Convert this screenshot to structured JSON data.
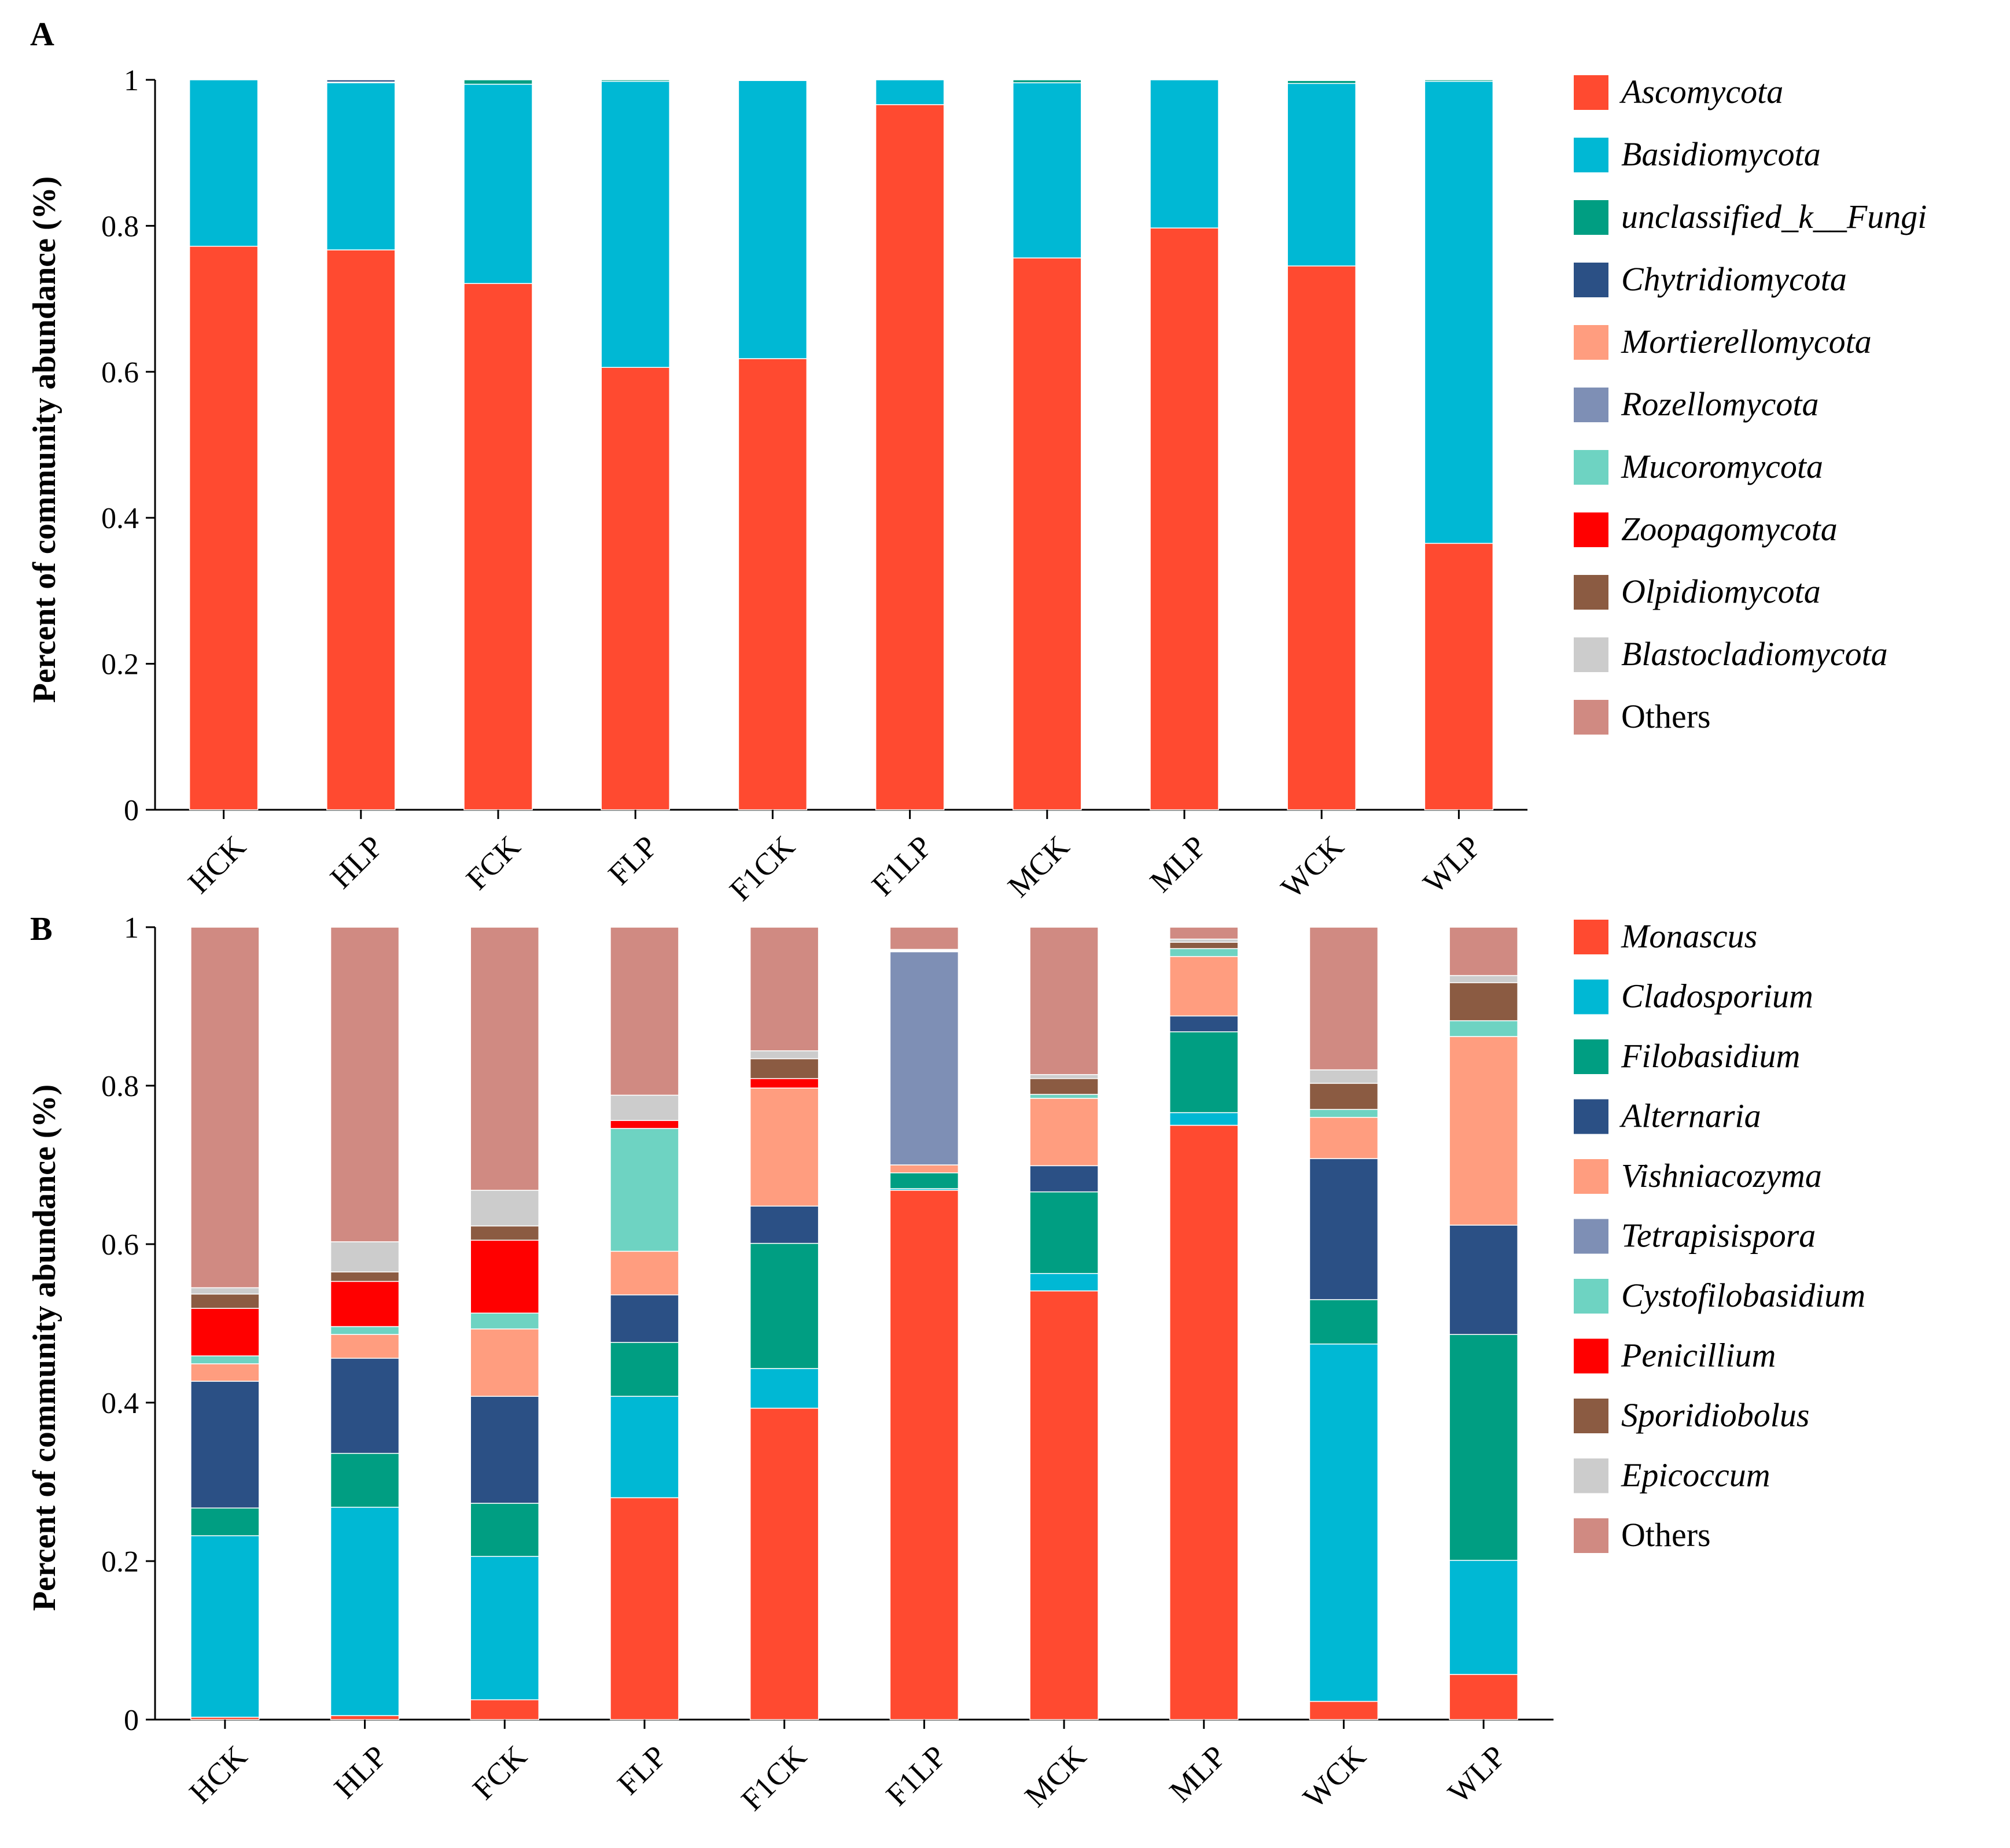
{
  "chart_data": [
    {
      "panel": "A",
      "type": "bar",
      "stacked": true,
      "ylabel": "Percent of community abundance (%)",
      "ylim": [
        0,
        1
      ],
      "yticks": [
        "0",
        "0.2",
        "0.4",
        "0.6",
        "0.8",
        "1"
      ],
      "categories": [
        "HCK",
        "HLP",
        "FCK",
        "FLP",
        "F1CK",
        "F1LP",
        "MCK",
        "MLP",
        "WCK",
        "WLP"
      ],
      "series": [
        {
          "name": "Ascomycota",
          "italic": true,
          "color": "#FF4A30",
          "values": [
            0.772,
            0.767,
            0.721,
            0.606,
            0.618,
            0.966,
            0.756,
            0.797,
            0.745,
            0.365
          ]
        },
        {
          "name": "Basidiomycota",
          "italic": true,
          "color": "#00B8D4",
          "values": [
            0.228,
            0.229,
            0.273,
            0.392,
            0.381,
            0.034,
            0.24,
            0.203,
            0.25,
            0.633
          ]
        },
        {
          "name": "unclassified_k__Fungi",
          "italic": true,
          "color": "#009E82",
          "values": [
            0,
            0.001,
            0.006,
            0.002,
            0.001,
            0,
            0.004,
            0,
            0.004,
            0.002
          ]
        },
        {
          "name": "Chytridiomycota",
          "italic": true,
          "color": "#2B5085",
          "values": [
            0,
            0.003,
            0,
            0,
            0,
            0,
            0,
            0,
            0,
            0
          ]
        },
        {
          "name": "Mortierellomycota",
          "italic": true,
          "color": "#FF9D7F",
          "values": [
            0,
            0,
            0,
            0,
            0,
            0,
            0,
            0,
            0,
            0
          ]
        },
        {
          "name": "Rozellomycota",
          "italic": true,
          "color": "#7E8FB5",
          "values": [
            0,
            0,
            0,
            0,
            0,
            0,
            0,
            0,
            0,
            0
          ]
        },
        {
          "name": "Mucoromycota",
          "italic": true,
          "color": "#6ED3C2",
          "values": [
            0,
            0,
            0,
            0,
            0,
            0,
            0,
            0,
            0,
            0
          ]
        },
        {
          "name": "Zoopagomycota",
          "italic": true,
          "color": "#FF0000",
          "values": [
            0,
            0,
            0,
            0,
            0,
            0,
            0,
            0,
            0,
            0
          ]
        },
        {
          "name": "Olpidiomycota",
          "italic": true,
          "color": "#8B5B42",
          "values": [
            0,
            0,
            0,
            0,
            0,
            0,
            0,
            0,
            0,
            0
          ]
        },
        {
          "name": "Blastocladiomycota",
          "italic": true,
          "color": "#CCCCCC",
          "values": [
            0,
            0,
            0,
            0,
            0,
            0,
            0,
            0,
            0,
            0
          ]
        },
        {
          "name": "Others",
          "italic": false,
          "color": "#D08A82",
          "values": [
            0,
            0,
            0,
            0,
            0,
            0,
            0,
            0,
            0.001,
            0
          ]
        }
      ]
    },
    {
      "panel": "B",
      "type": "bar",
      "stacked": true,
      "ylabel": "Percent of community abundance (%)",
      "ylim": [
        0,
        1
      ],
      "yticks": [
        "0",
        "0.2",
        "0.4",
        "0.6",
        "0.8",
        "1"
      ],
      "categories": [
        "HCK",
        "HLP",
        "FCK",
        "FLP",
        "F1CK",
        "F1LP",
        "MCK",
        "MLP",
        "WCK",
        "WLP"
      ],
      "series": [
        {
          "name": "Monascus",
          "italic": true,
          "color": "#FF4A30",
          "values": [
            0.003,
            0.005,
            0.025,
            0.28,
            0.393,
            0.668,
            0.541,
            0.75,
            0.023,
            0.057
          ]
        },
        {
          "name": "Cladosporium",
          "italic": true,
          "color": "#00B8D4",
          "values": [
            0.229,
            0.263,
            0.181,
            0.128,
            0.05,
            0.002,
            0.022,
            0.016,
            0.451,
            0.144
          ]
        },
        {
          "name": "Filobasidium",
          "italic": true,
          "color": "#009E82",
          "values": [
            0.035,
            0.068,
            0.067,
            0.068,
            0.158,
            0.02,
            0.103,
            0.102,
            0.056,
            0.285
          ]
        },
        {
          "name": "Alternaria",
          "italic": true,
          "color": "#2B5085",
          "values": [
            0.16,
            0.12,
            0.135,
            0.06,
            0.047,
            0,
            0.033,
            0.02,
            0.178,
            0.138
          ]
        },
        {
          "name": "Vishniacozyma",
          "italic": true,
          "color": "#FF9D7F",
          "values": [
            0.022,
            0.03,
            0.085,
            0.055,
            0.149,
            0.01,
            0.085,
            0.075,
            0.052,
            0.238
          ]
        },
        {
          "name": "Tetrapisispora",
          "italic": true,
          "color": "#7E8FB5",
          "values": [
            0,
            0,
            0,
            0,
            0,
            0.269,
            0,
            0,
            0,
            0
          ]
        },
        {
          "name": "Cystofilobasidium",
          "italic": true,
          "color": "#6ED3C2",
          "values": [
            0.01,
            0.01,
            0.02,
            0.155,
            0,
            0.001,
            0.005,
            0.01,
            0.01,
            0.02
          ]
        },
        {
          "name": "Penicillium",
          "italic": true,
          "color": "#FF0000",
          "values": [
            0.06,
            0.057,
            0.092,
            0.01,
            0.012,
            0,
            0,
            0,
            0,
            0
          ]
        },
        {
          "name": "Sporidiobolus",
          "italic": true,
          "color": "#8B5B42",
          "values": [
            0.018,
            0.012,
            0.018,
            0,
            0.025,
            0.001,
            0.02,
            0.008,
            0.033,
            0.048
          ]
        },
        {
          "name": "Epicoccum",
          "italic": true,
          "color": "#CCCCCC",
          "values": [
            0.008,
            0.038,
            0.045,
            0.032,
            0.01,
            0.001,
            0.005,
            0.004,
            0.017,
            0.009
          ]
        },
        {
          "name": "Others",
          "italic": false,
          "color": "#D08A82",
          "values": [
            0.455,
            0.397,
            0.332,
            0.212,
            0.156,
            0.028,
            0.186,
            0.015,
            0.18,
            0.061
          ]
        }
      ]
    }
  ]
}
